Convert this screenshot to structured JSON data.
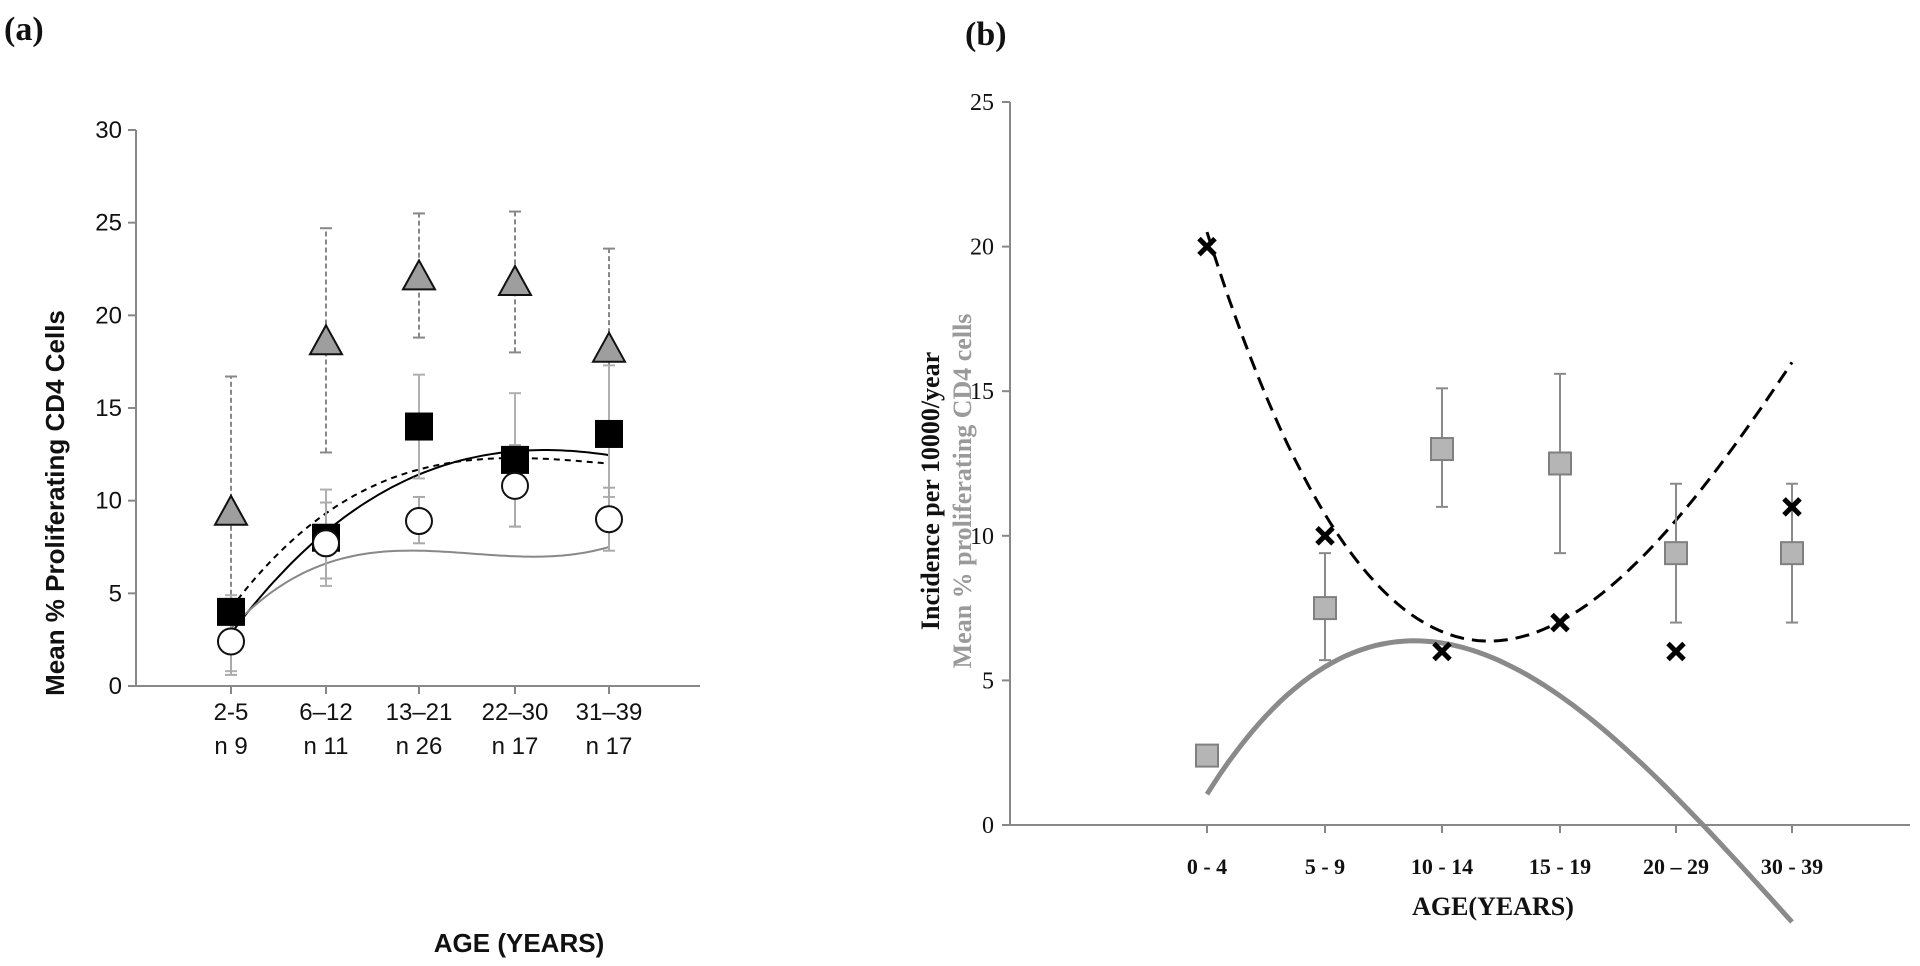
{
  "chart_data": [
    {
      "panel_label": "(a)",
      "type": "scatter",
      "xlabel": "AGE (YEARS)",
      "ylabel": "Mean % Proliferating CD4 Cells",
      "ylim": [
        0,
        30
      ],
      "yticks": [
        "0",
        "5",
        "10",
        "15",
        "20",
        "25",
        "30"
      ],
      "categories": [
        {
          "age": "2-5",
          "n": "n 9"
        },
        {
          "age": "6–12",
          "n": "n 11"
        },
        {
          "age": "13–21",
          "n": "n 26"
        },
        {
          "age": "22–30",
          "n": "n 17"
        },
        {
          "age": "31–39",
          "n": "n 17"
        }
      ],
      "grid": false,
      "legend": "none",
      "series": [
        {
          "marker": "triangle",
          "fill": "#9e9e9e",
          "trend": "solid-black",
          "values": [
            9.4,
            18.6,
            22.1,
            21.8,
            18.2
          ],
          "err_low": [
            1.9,
            12.6,
            18.8,
            18.0,
            13.0
          ],
          "err_high": [
            16.7,
            24.7,
            25.5,
            25.6,
            23.6
          ],
          "trend_coef": [
            -5.47,
            9.855,
            -1.6364,
            0.0765
          ]
        },
        {
          "marker": "square",
          "fill": "#000000",
          "trend": "dashed-black",
          "values": [
            4.0,
            8.0,
            14.0,
            12.2,
            13.6
          ],
          "err_low": [
            0.8,
            5.4,
            11.2,
            8.6,
            10.2
          ],
          "err_high": [
            4.9,
            10.6,
            16.8,
            15.8,
            17.3
          ],
          "trend_coef": [
            -4.5,
            10.8,
            -2.25,
            0.15
          ]
        },
        {
          "marker": "circle",
          "fill": "#ffffff",
          "trend": "solid-gray",
          "values": [
            2.4,
            7.7,
            8.9,
            10.8,
            9.0
          ],
          "err_low": [
            0.6,
            5.8,
            7.7,
            8.6,
            7.3
          ],
          "err_high": [
            4.2,
            9.9,
            10.2,
            13.0,
            10.7
          ],
          "trend_coef": [
            -5.0,
            11.0,
            -3.2,
            0.3
          ]
        }
      ]
    },
    {
      "panel_label": "(b)",
      "type": "scatter",
      "xlabel": "AGE(YEARS)",
      "ylabel_primary": "Incidence per 10000/year",
      "ylabel_secondary": "Mean % proliferating CD4 cells",
      "ylim": [
        0,
        25
      ],
      "yticks": [
        "0",
        "5",
        "10",
        "15",
        "20",
        "25"
      ],
      "categories": [
        "0 - 4",
        "5 - 9",
        "10 - 14",
        "15 - 19",
        "20 – 29",
        "30 - 39"
      ],
      "grid": false,
      "legend": "none",
      "series": [
        {
          "marker": "square",
          "fill": "#b5b5b5",
          "stroke": "#808080",
          "trend": "solid-gray-thick",
          "values": [
            2.4,
            7.5,
            13.0,
            12.5,
            9.4,
            9.4
          ],
          "err_low": [
            null,
            5.7,
            11.0,
            9.4,
            7.0,
            7.0
          ],
          "err_high": [
            null,
            9.4,
            15.1,
            15.6,
            11.8,
            11.8
          ],
          "trend_coef": [
            -7.75,
            11.333,
            -2.6667,
            0.15
          ]
        },
        {
          "marker": "x",
          "fill": "#000000",
          "trend": "dashed-black",
          "values": [
            20,
            10,
            6,
            7,
            6,
            11
          ],
          "trend_coef": [
            37.0,
            -20.3,
            4.0,
            -0.2
          ]
        }
      ]
    }
  ]
}
